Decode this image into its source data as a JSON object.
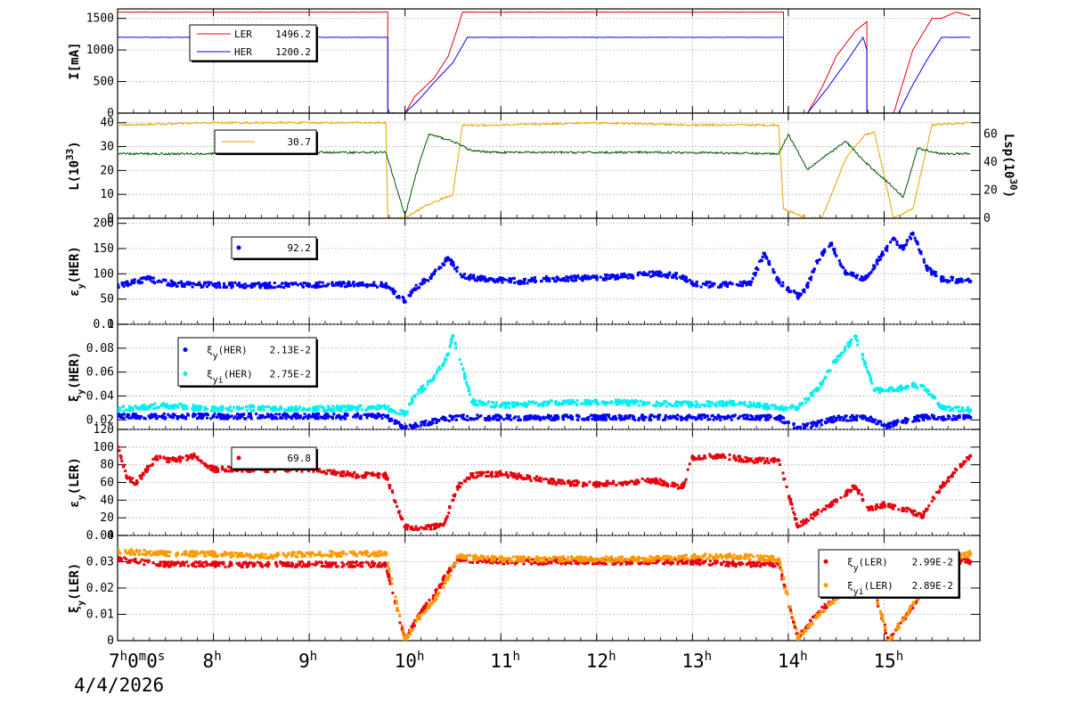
{
  "date_label": "4/4/2026",
  "chart_data": [
    {
      "type": "line",
      "ylabel": "I[mA]",
      "ylim": [
        0,
        1650
      ],
      "yticks": [
        "0",
        "500",
        "1000",
        "1500"
      ],
      "x_ticks": [
        "7h0m0s",
        "8h",
        "9h",
        "10h",
        "11h",
        "12h",
        "13h",
        "14h",
        "15h"
      ],
      "series": [
        {
          "name": "LER",
          "value_label": "1496.2",
          "color": "#e8000b",
          "x": [
            7.0,
            9.82,
            9.82,
            10.0,
            10.1,
            10.3,
            10.45,
            10.55,
            10.6,
            11.0,
            12.0,
            13.0,
            13.95,
            13.95,
            14.2,
            14.35,
            14.5,
            14.7,
            14.82,
            14.82,
            15.1,
            15.3,
            15.5,
            15.6,
            15.75,
            15.9
          ],
          "y": [
            1600,
            1600,
            0,
            0,
            260,
            550,
            900,
            1350,
            1600,
            1600,
            1600,
            1600,
            1600,
            0,
            0,
            400,
            900,
            1300,
            1450,
            0,
            0,
            1000,
            1500,
            1500,
            1600,
            1540
          ]
        },
        {
          "name": "HER",
          "value_label": "1200.2",
          "color": "#0000ff",
          "x": [
            7.0,
            9.82,
            9.82,
            10.0,
            10.15,
            10.3,
            10.5,
            10.65,
            11.0,
            12.0,
            13.0,
            13.95,
            13.95,
            14.2,
            14.4,
            14.6,
            14.78,
            14.82,
            14.82,
            15.15,
            15.3,
            15.45,
            15.6,
            15.9
          ],
          "y": [
            1200,
            1200,
            0,
            0,
            220,
            480,
            800,
            1200,
            1200,
            1200,
            1200,
            1200,
            0,
            0,
            380,
            800,
            1200,
            1000,
            0,
            0,
            450,
            850,
            1200,
            1200
          ]
        }
      ]
    },
    {
      "type": "line",
      "ylabel": "L(1033)",
      "ylim": [
        0,
        44
      ],
      "yticks": [
        "0",
        "10",
        "20",
        "30",
        "40"
      ],
      "y2label": "Lsp(1030)",
      "y2lim": [
        0,
        75
      ],
      "y2ticks": [
        "0",
        "20",
        "40",
        "60"
      ],
      "legend_label": "30.7",
      "series": [
        {
          "name": "L",
          "color": "#e8a400",
          "x": [
            7.0,
            8.0,
            9.0,
            9.8,
            9.82,
            10.0,
            10.2,
            10.5,
            10.6,
            11.0,
            12.0,
            13.0,
            13.9,
            13.95,
            14.2,
            14.35,
            14.6,
            14.8,
            14.9,
            15.1,
            15.3,
            15.5,
            15.9
          ],
          "y": [
            39,
            40,
            40,
            40,
            0,
            0,
            5,
            10,
            39,
            39,
            40,
            39,
            39,
            4,
            0,
            0,
            25,
            35,
            36,
            0,
            4,
            39,
            40
          ]
        },
        {
          "name": "Lsp",
          "color": "#005500",
          "x": [
            7.0,
            8.0,
            9.0,
            9.8,
            10.0,
            10.15,
            10.25,
            10.5,
            10.7,
            11.0,
            12.0,
            13.0,
            13.9,
            14.0,
            14.2,
            14.4,
            14.6,
            14.8,
            15.05,
            15.2,
            15.35,
            15.6,
            15.9
          ],
          "y": [
            46,
            46,
            47,
            47,
            2,
            40,
            60,
            55,
            48,
            47,
            47,
            47,
            46,
            60,
            35,
            45,
            55,
            40,
            25,
            15,
            50,
            46,
            46
          ]
        }
      ]
    },
    {
      "type": "scatter",
      "ylabel": "εy(HER)",
      "ylim": [
        0,
        210
      ],
      "yticks": [
        "0",
        "50",
        "100",
        "150",
        "200"
      ],
      "legend_label": "92.2",
      "series": [
        {
          "name": "εy(HER)",
          "color": "#0000ff",
          "x": [
            7.0,
            7.1,
            7.3,
            7.6,
            8.0,
            8.5,
            9.0,
            9.5,
            9.8,
            10.0,
            10.1,
            10.3,
            10.45,
            10.6,
            10.8,
            11.0,
            11.2,
            11.5,
            12.0,
            12.3,
            12.6,
            12.9,
            13.0,
            13.3,
            13.6,
            13.75,
            13.9,
            14.1,
            14.2,
            14.3,
            14.45,
            14.6,
            14.8,
            15.1,
            15.2,
            15.3,
            15.45,
            15.6,
            15.9
          ],
          "y": [
            78,
            80,
            90,
            80,
            78,
            77,
            78,
            79,
            78,
            45,
            70,
            100,
            130,
            95,
            90,
            88,
            85,
            90,
            92,
            95,
            100,
            95,
            80,
            78,
            80,
            140,
            85,
            55,
            75,
            125,
            160,
            100,
            90,
            170,
            150,
            180,
            110,
            90,
            85
          ]
        }
      ]
    },
    {
      "type": "scatter",
      "ylabel": "ξy(HER)",
      "ylim": [
        0.012,
        0.1
      ],
      "yticks": [
        "0.02",
        "0.04",
        "0.06",
        "0.08",
        "0.1"
      ],
      "series": [
        {
          "name": "ξy(HER)",
          "legend_sub": "y",
          "value_label": "2.13E-2",
          "color": "#0000ff",
          "x": [
            7.0,
            8.0,
            9.0,
            9.8,
            10.0,
            10.2,
            10.4,
            10.6,
            11.0,
            12.0,
            13.0,
            13.9,
            14.1,
            14.3,
            14.5,
            14.8,
            15.05,
            15.2,
            15.4,
            15.9
          ],
          "y": [
            0.023,
            0.023,
            0.023,
            0.023,
            0.013,
            0.017,
            0.021,
            0.022,
            0.022,
            0.022,
            0.022,
            0.022,
            0.013,
            0.017,
            0.021,
            0.022,
            0.015,
            0.019,
            0.022,
            0.022
          ]
        },
        {
          "name": "ξyi(HER)",
          "legend_sub": "yi",
          "value_label": "2.75E-2",
          "color": "#00f0f0",
          "x": [
            7.0,
            7.5,
            8.0,
            8.5,
            9.0,
            9.5,
            9.8,
            10.0,
            10.1,
            10.3,
            10.45,
            10.5,
            10.7,
            11.0,
            11.5,
            12.0,
            12.5,
            13.0,
            13.5,
            13.9,
            14.1,
            14.3,
            14.5,
            14.7,
            14.9,
            15.1,
            15.3,
            15.45,
            15.6,
            15.9
          ],
          "y": [
            0.029,
            0.032,
            0.029,
            0.03,
            0.029,
            0.03,
            0.03,
            0.025,
            0.04,
            0.055,
            0.075,
            0.09,
            0.035,
            0.032,
            0.034,
            0.035,
            0.034,
            0.033,
            0.034,
            0.03,
            0.03,
            0.045,
            0.07,
            0.09,
            0.045,
            0.045,
            0.05,
            0.045,
            0.03,
            0.028
          ]
        }
      ]
    },
    {
      "type": "scatter",
      "ylabel": "εy(LER)",
      "ylim": [
        0,
        120
      ],
      "yticks": [
        "0",
        "20",
        "40",
        "60",
        "80",
        "100",
        "120"
      ],
      "legend_label": "69.8",
      "series": [
        {
          "name": "εy(LER)",
          "color": "#e8000b",
          "x": [
            7.0,
            7.1,
            7.2,
            7.4,
            7.6,
            7.8,
            8.0,
            8.5,
            9.0,
            9.5,
            9.8,
            10.0,
            10.2,
            10.4,
            10.55,
            10.7,
            11.0,
            11.3,
            11.6,
            12.0,
            12.3,
            12.6,
            12.9,
            13.0,
            13.3,
            13.6,
            13.9,
            14.1,
            14.3,
            14.5,
            14.7,
            14.85,
            15.0,
            15.2,
            15.4,
            15.6,
            15.8,
            15.9
          ],
          "y": [
            100,
            65,
            60,
            88,
            85,
            90,
            75,
            75,
            75,
            68,
            68,
            10,
            8,
            12,
            55,
            68,
            70,
            65,
            60,
            58,
            60,
            62,
            55,
            88,
            90,
            85,
            85,
            10,
            25,
            40,
            55,
            30,
            35,
            30,
            22,
            55,
            80,
            90
          ]
        }
      ]
    },
    {
      "type": "scatter",
      "ylabel": "ξy(LER)",
      "ylim": [
        0,
        0.04
      ],
      "yticks": [
        "0",
        "0.01",
        "0.02",
        "0.03",
        "0.04"
      ],
      "series": [
        {
          "name": "ξy(LER)",
          "legend_sub": "y",
          "value_label": "2.99E-2",
          "color": "#e8000b",
          "x": [
            7.0,
            7.5,
            8.0,
            8.5,
            9.0,
            9.8,
            10.0,
            10.15,
            10.3,
            10.45,
            10.55,
            11.0,
            11.5,
            12.0,
            12.5,
            13.0,
            13.5,
            13.9,
            14.1,
            14.3,
            14.5,
            14.7,
            14.8,
            15.05,
            15.2,
            15.35,
            15.5,
            15.6,
            15.9
          ],
          "y": [
            0.031,
            0.029,
            0.029,
            0.029,
            0.029,
            0.029,
            0.0,
            0.01,
            0.017,
            0.026,
            0.031,
            0.03,
            0.03,
            0.03,
            0.03,
            0.03,
            0.029,
            0.029,
            0.001,
            0.01,
            0.017,
            0.025,
            0.031,
            0.0,
            0.008,
            0.016,
            0.027,
            0.03,
            0.03
          ]
        },
        {
          "name": "ξyi(LER)",
          "legend_sub": "yi",
          "value_label": "2.89E-2",
          "color": "#ff9900",
          "x": [
            7.0,
            7.5,
            8.0,
            8.5,
            9.0,
            9.8,
            10.0,
            10.15,
            10.3,
            10.45,
            10.55,
            11.0,
            11.5,
            12.0,
            12.5,
            13.0,
            13.5,
            13.9,
            14.1,
            14.3,
            14.5,
            14.7,
            14.8,
            15.05,
            15.2,
            15.35,
            15.5,
            15.6,
            15.9
          ],
          "y": [
            0.034,
            0.033,
            0.033,
            0.032,
            0.033,
            0.033,
            0.0,
            0.009,
            0.015,
            0.024,
            0.032,
            0.031,
            0.031,
            0.031,
            0.031,
            0.032,
            0.032,
            0.031,
            0.001,
            0.009,
            0.016,
            0.024,
            0.03,
            0.0,
            0.008,
            0.016,
            0.026,
            0.031,
            0.033
          ]
        }
      ]
    }
  ]
}
